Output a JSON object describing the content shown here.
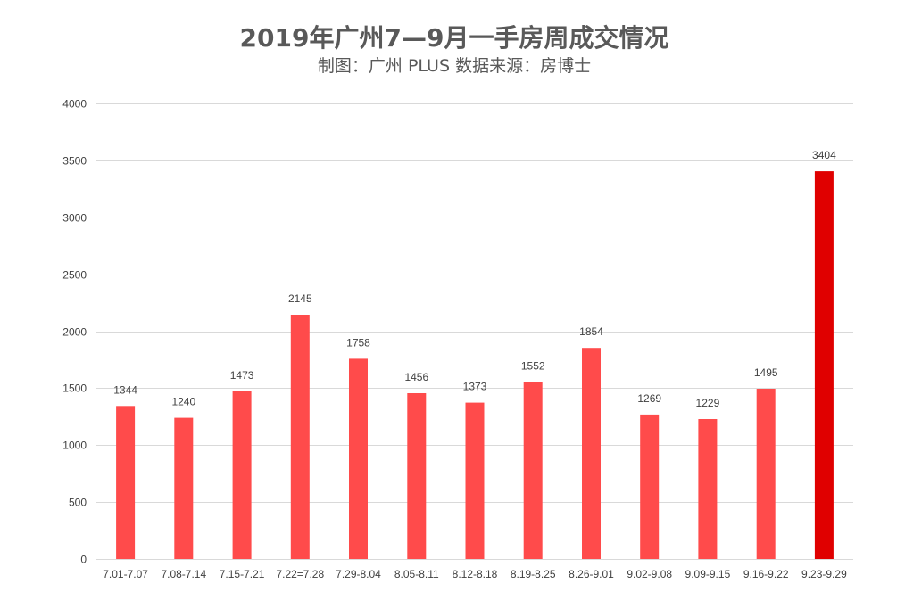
{
  "chart_data": {
    "type": "bar",
    "title": "2019年广州7—9月一手房周成交情况",
    "subtitle": "制图：广州 PLUS 数据来源：房博士",
    "xlabel": "",
    "ylabel": "",
    "ylim": [
      0,
      4000
    ],
    "yticks": [
      0,
      500,
      1000,
      1500,
      2000,
      2500,
      3000,
      3500,
      4000
    ],
    "grid": true,
    "legend": "none",
    "categories": [
      "7.01-7.07",
      "7.08-7.14",
      "7.15-7.21",
      "7.22=7.28",
      "7.29-8.04",
      "8.05-8.11",
      "8.12-8.18",
      "8.19-8.25",
      "8.26-9.01",
      "9.02-9.08",
      "9.09-9.15",
      "9.16-9.22",
      "9.23-9.29"
    ],
    "values": [
      1344,
      1240,
      1473,
      2145,
      1758,
      1456,
      1373,
      1552,
      1854,
      1269,
      1229,
      1495,
      3404
    ],
    "bar_color": "#ff4b4b",
    "highlight_color": "#e00000",
    "highlight_index": 12
  }
}
